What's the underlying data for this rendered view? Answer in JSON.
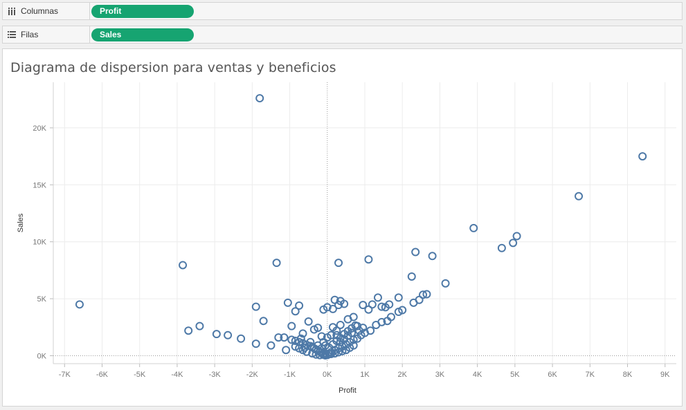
{
  "shelves": {
    "columns": {
      "label": "Columnas",
      "pill": "Profit",
      "icon": "columns-icon"
    },
    "rows": {
      "label": "Filas",
      "pill": "Sales",
      "icon": "rows-icon"
    }
  },
  "colors": {
    "pill": "#16a471",
    "marker": "#4e79a7"
  },
  "chart_data": {
    "type": "scatter",
    "title": "Diagrama de dispersion para ventas y beneficios",
    "xlabel": "Profit",
    "ylabel": "Sales",
    "xlim": [
      -7300,
      9300
    ],
    "ylim": [
      -700,
      24000
    ],
    "xticks": [
      -7000,
      -6000,
      -5000,
      -4000,
      -3000,
      -2000,
      -1000,
      0,
      1000,
      2000,
      3000,
      4000,
      5000,
      6000,
      7000,
      8000,
      9000
    ],
    "xtick_labels": [
      "-7K",
      "-6K",
      "-5K",
      "-4K",
      "-3K",
      "-2K",
      "-1K",
      "0K",
      "1K",
      "2K",
      "3K",
      "4K",
      "5K",
      "6K",
      "7K",
      "8K",
      "9K"
    ],
    "yticks": [
      0,
      5000,
      10000,
      15000,
      20000
    ],
    "ytick_labels": [
      "0K",
      "5K",
      "10K",
      "15K",
      "20K"
    ],
    "grid": true,
    "series": [
      {
        "marker": "hollow-circle",
        "points": [
          [
            -1800,
            22600
          ],
          [
            8400,
            17500
          ],
          [
            6700,
            14000
          ],
          [
            3900,
            11200
          ],
          [
            5050,
            10500
          ],
          [
            4650,
            9450
          ],
          [
            4950,
            9900
          ],
          [
            2350,
            9100
          ],
          [
            2800,
            8750
          ],
          [
            -3850,
            7950
          ],
          [
            -1350,
            8150
          ],
          [
            300,
            8150
          ],
          [
            1100,
            8450
          ],
          [
            2250,
            6950
          ],
          [
            3150,
            6350
          ],
          [
            -6600,
            4500
          ],
          [
            -3700,
            2200
          ],
          [
            -3400,
            2600
          ],
          [
            -2950,
            1900
          ],
          [
            -2650,
            1800
          ],
          [
            -2300,
            1500
          ],
          [
            -1900,
            4300
          ],
          [
            -1900,
            1050
          ],
          [
            -1700,
            3050
          ],
          [
            -1500,
            900
          ],
          [
            -1300,
            1600
          ],
          [
            -1150,
            1600
          ],
          [
            -1100,
            500
          ],
          [
            -1050,
            4650
          ],
          [
            -950,
            2600
          ],
          [
            -850,
            3900
          ],
          [
            -750,
            4400
          ],
          [
            -700,
            1500
          ],
          [
            -650,
            1950
          ],
          [
            -600,
            700
          ],
          [
            -500,
            3000
          ],
          [
            -450,
            1200
          ],
          [
            -350,
            2300
          ],
          [
            -250,
            2450
          ],
          [
            -150,
            1700
          ],
          [
            -100,
            4050
          ],
          [
            0,
            4250
          ],
          [
            150,
            4100
          ],
          [
            200,
            4900
          ],
          [
            300,
            4450
          ],
          [
            350,
            4800
          ],
          [
            450,
            4550
          ],
          [
            550,
            3200
          ],
          [
            700,
            3400
          ],
          [
            800,
            2600
          ],
          [
            950,
            4450
          ],
          [
            1100,
            4050
          ],
          [
            1200,
            4500
          ],
          [
            1350,
            5100
          ],
          [
            1450,
            4300
          ],
          [
            1550,
            4250
          ],
          [
            1650,
            4500
          ],
          [
            1700,
            3400
          ],
          [
            1900,
            3850
          ],
          [
            1900,
            5100
          ],
          [
            2000,
            4000
          ],
          [
            2300,
            4650
          ],
          [
            2450,
            4900
          ],
          [
            2550,
            5350
          ],
          [
            2650,
            5400
          ],
          [
            1300,
            2700
          ],
          [
            1450,
            2950
          ],
          [
            1600,
            3050
          ],
          [
            1150,
            2200
          ],
          [
            1000,
            2000
          ],
          [
            900,
            1800
          ],
          [
            800,
            1500
          ],
          [
            700,
            1400
          ],
          [
            600,
            1200
          ],
          [
            500,
            1000
          ],
          [
            400,
            800
          ],
          [
            300,
            650
          ],
          [
            200,
            500
          ],
          [
            100,
            300
          ],
          [
            50,
            150
          ],
          [
            0,
            60
          ],
          [
            -50,
            120
          ],
          [
            -100,
            200
          ],
          [
            -150,
            280
          ],
          [
            -200,
            350
          ],
          [
            -250,
            450
          ],
          [
            -300,
            550
          ],
          [
            -350,
            650
          ],
          [
            -400,
            750
          ],
          [
            -450,
            850
          ],
          [
            -550,
            950
          ],
          [
            -650,
            1100
          ],
          [
            -750,
            1200
          ],
          [
            -850,
            1300
          ],
          [
            -950,
            1400
          ],
          [
            -400,
            200
          ],
          [
            -300,
            100
          ],
          [
            -200,
            50
          ],
          [
            -100,
            80
          ],
          [
            -50,
            30
          ],
          [
            50,
            700
          ],
          [
            150,
            1000
          ],
          [
            250,
            1300
          ],
          [
            350,
            1550
          ],
          [
            450,
            1900
          ],
          [
            550,
            2150
          ],
          [
            650,
            2400
          ],
          [
            750,
            2650
          ],
          [
            250,
            2200
          ],
          [
            350,
            2700
          ],
          [
            150,
            2500
          ],
          [
            100,
            1800
          ],
          [
            0,
            1600
          ],
          [
            -100,
            1200
          ],
          [
            -50,
            900
          ],
          [
            250,
            1800
          ],
          [
            350,
            1200
          ],
          [
            450,
            1450
          ],
          [
            550,
            1750
          ],
          [
            650,
            2000
          ],
          [
            850,
            2200
          ],
          [
            950,
            2450
          ],
          [
            700,
            900
          ],
          [
            600,
            700
          ],
          [
            500,
            500
          ],
          [
            400,
            400
          ],
          [
            300,
            300
          ],
          [
            200,
            200
          ],
          [
            100,
            150
          ],
          [
            -550,
            350
          ],
          [
            -650,
            500
          ],
          [
            -750,
            650
          ],
          [
            -850,
            800
          ],
          [
            -250,
            900
          ],
          [
            -150,
            650
          ]
        ]
      }
    ]
  }
}
